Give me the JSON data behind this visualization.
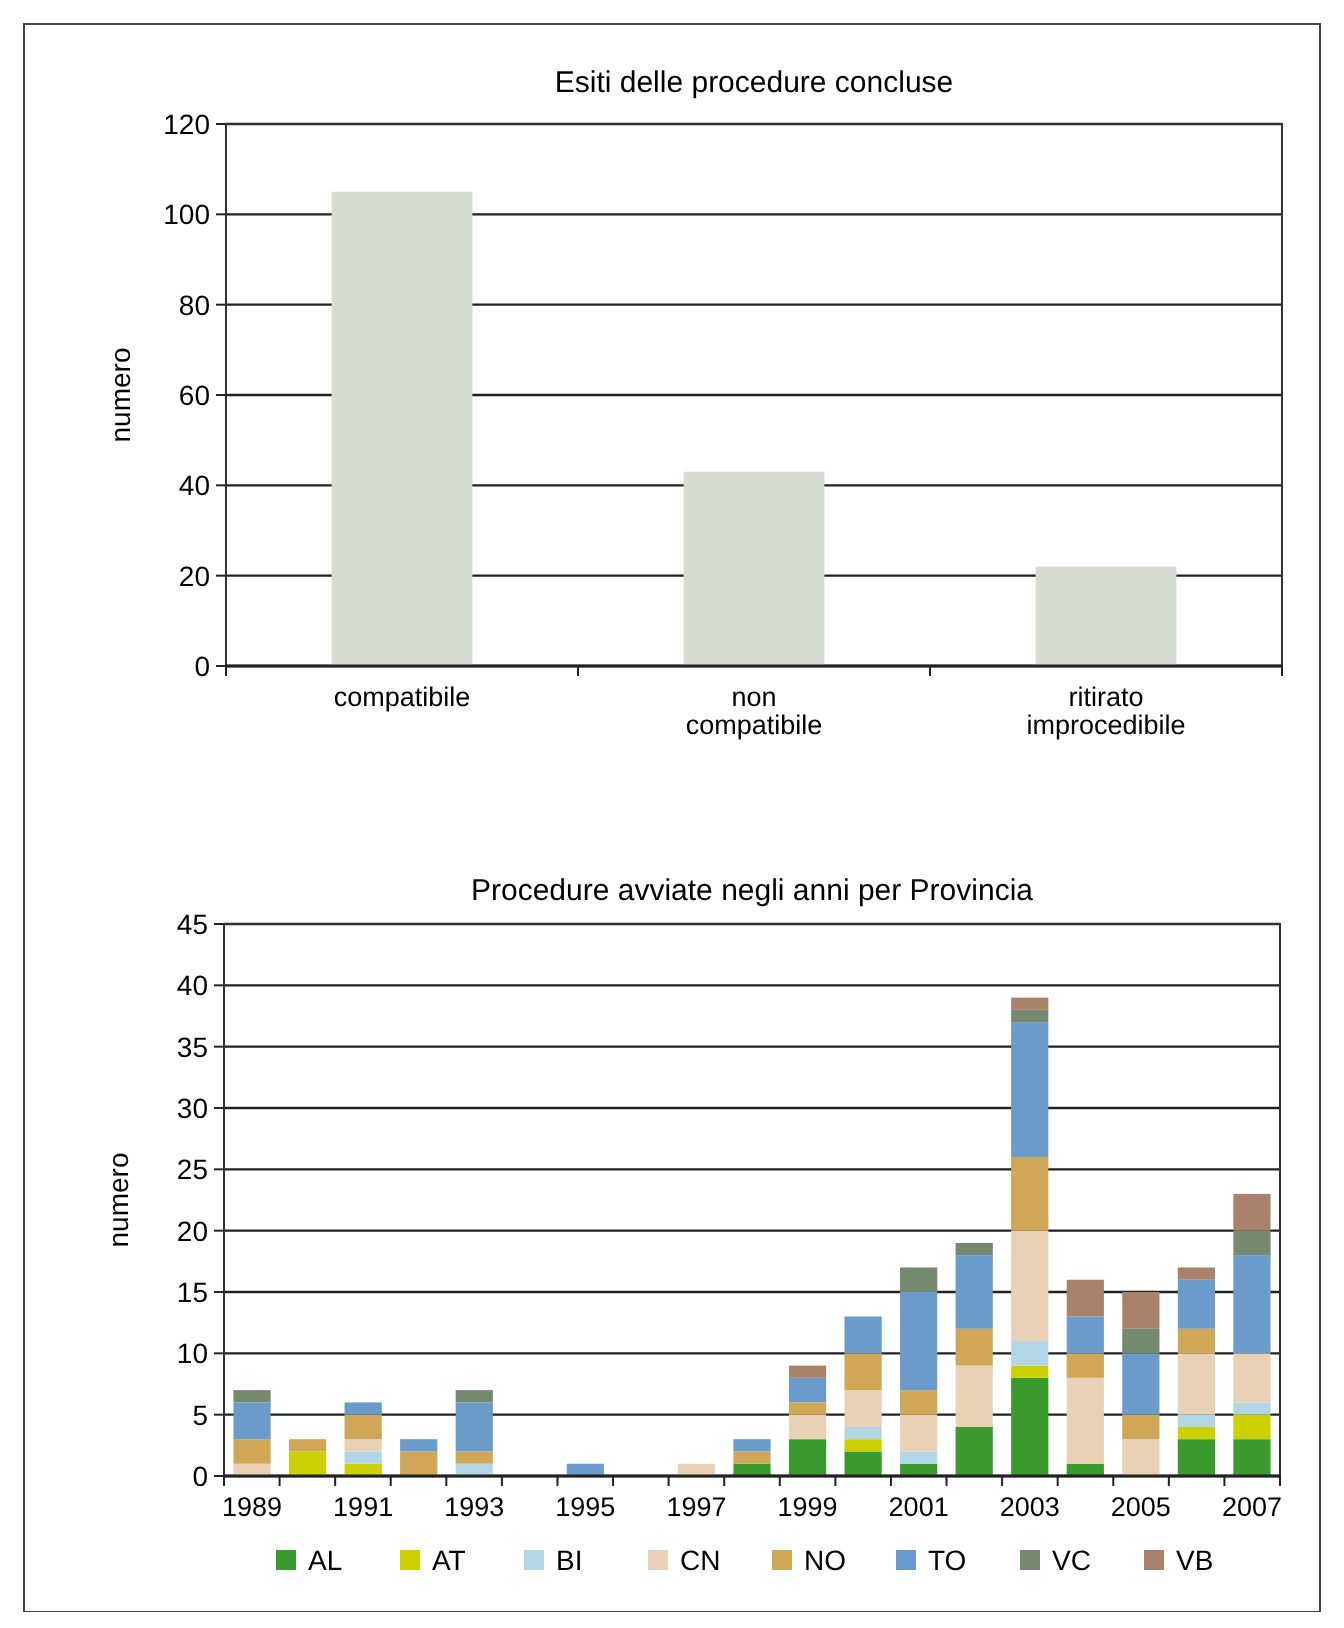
{
  "chart_data": [
    {
      "type": "bar",
      "title": "Esiti delle procedure concluse",
      "ylabel": "numero",
      "categories": [
        "compatibile",
        "non\ncompatibile",
        "ritirato\nimprocedibile"
      ],
      "values": [
        105,
        43,
        22
      ],
      "color": "#d4dbd0",
      "ylim": [
        0,
        120
      ],
      "yticks": [
        0,
        20,
        40,
        60,
        80,
        100,
        120
      ],
      "grid": "y"
    },
    {
      "type": "bar",
      "title": "Procedure avviate negli anni per Provincia",
      "ylabel": "numero",
      "stacked": true,
      "legend": "bottom",
      "categories": [
        "1989",
        null,
        "1991",
        null,
        "1993",
        null,
        "1995",
        null,
        "1997",
        null,
        "1999",
        null,
        "2001",
        null,
        "2003",
        null,
        "2005",
        null,
        "2007"
      ],
      "ylim": [
        0,
        45
      ],
      "yticks": [
        0,
        5,
        10,
        15,
        20,
        25,
        30,
        35,
        40,
        45
      ],
      "grid": "y",
      "series": [
        {
          "name": "AL",
          "color": "#3a9a2e",
          "values": [
            0,
            0,
            0,
            0,
            0,
            0,
            0,
            0,
            0,
            1,
            3,
            2,
            1,
            4,
            8,
            1,
            0,
            3,
            3
          ]
        },
        {
          "name": "AT",
          "color": "#cdd000",
          "values": [
            0,
            2,
            1,
            0,
            0,
            0,
            0,
            0,
            0,
            0,
            0,
            1,
            0,
            0,
            1,
            0,
            0,
            1,
            2
          ]
        },
        {
          "name": "BI",
          "color": "#b3d6e6",
          "values": [
            0,
            0,
            1,
            0,
            1,
            0,
            0,
            0,
            0,
            0,
            0,
            1,
            1,
            0,
            2,
            0,
            0,
            1,
            1
          ]
        },
        {
          "name": "CN",
          "color": "#e9d1b6",
          "values": [
            1,
            0,
            1,
            0,
            0,
            0,
            0,
            0,
            1,
            0,
            2,
            3,
            3,
            5,
            9,
            7,
            3,
            5,
            4
          ]
        },
        {
          "name": "NO",
          "color": "#cfa757",
          "values": [
            2,
            1,
            2,
            2,
            1,
            0,
            0,
            0,
            0,
            1,
            1,
            3,
            2,
            3,
            6,
            2,
            2,
            2,
            0
          ]
        },
        {
          "name": "TO",
          "color": "#6a9bcb",
          "values": [
            3,
            0,
            1,
            1,
            4,
            0,
            1,
            0,
            0,
            1,
            2,
            3,
            8,
            6,
            11,
            3,
            5,
            4,
            8
          ]
        },
        {
          "name": "VC",
          "color": "#74896d",
          "values": [
            1,
            0,
            0,
            0,
            1,
            0,
            0,
            0,
            0,
            0,
            0,
            0,
            2,
            1,
            1,
            0,
            2,
            0,
            2
          ]
        },
        {
          "name": "VB",
          "color": "#a9826b",
          "values": [
            0,
            0,
            0,
            0,
            0,
            0,
            0,
            0,
            0,
            0,
            1,
            0,
            0,
            0,
            1,
            3,
            3,
            1,
            3
          ]
        }
      ]
    }
  ]
}
